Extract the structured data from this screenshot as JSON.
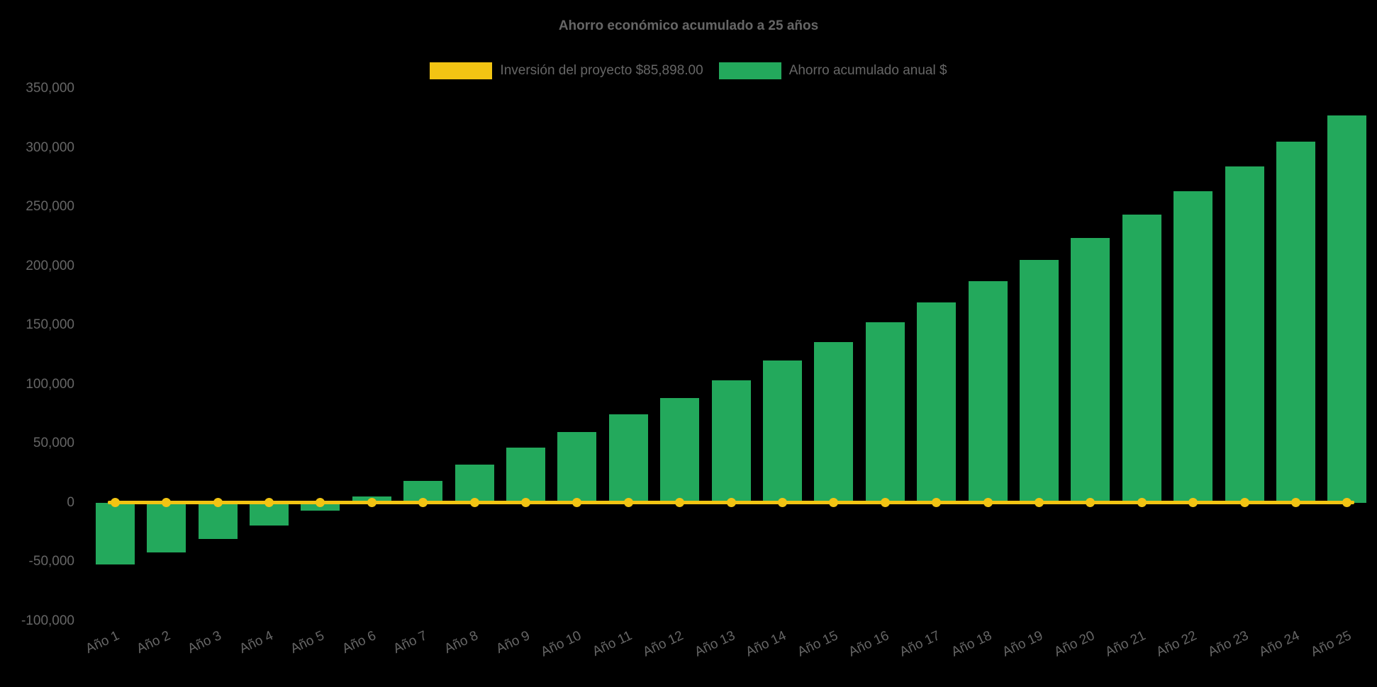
{
  "title": "Ahorro económico acumulado a 25 años",
  "legend": [
    {
      "label": "Inversión del proyecto $85,898.00",
      "color": "#F2C413",
      "type": "line"
    },
    {
      "label": "Ahorro acumulado anual $",
      "color": "#23A95C",
      "type": "bar"
    }
  ],
  "colors": {
    "background": "#000000",
    "text": "#666666",
    "bar_green": "#23A95C",
    "line_yellow": "#F2C413"
  },
  "chart_data": {
    "type": "bar",
    "title": "Ahorro económico acumulado a 25 años",
    "categories": [
      "Año 1",
      "Año 2",
      "Año 3",
      "Año 4",
      "Año 5",
      "Año 6",
      "Año 7",
      "Año 8",
      "Año 9",
      "Año 10",
      "Año 11",
      "Año 12",
      "Año 13",
      "Año 14",
      "Año 15",
      "Año 16",
      "Año 17",
      "Año 18",
      "Año 19",
      "Año 20",
      "Año 21",
      "Año 22",
      "Año 23",
      "Año 24",
      "Año 25"
    ],
    "series": [
      {
        "name": "Ahorro acumulado anual $",
        "type": "bar",
        "color": "#23A95C",
        "values": [
          -52000,
          -42000,
          -30500,
          -19000,
          -6500,
          5500,
          18500,
          32500,
          46500,
          60000,
          74500,
          88500,
          103500,
          120000,
          136000,
          152500,
          169500,
          187000,
          205000,
          224000,
          243500,
          263500,
          284000,
          305000,
          327000
        ]
      },
      {
        "name": "Inversión del proyecto $85,898.00",
        "type": "line",
        "color": "#F2C413",
        "values": [
          0,
          0,
          0,
          0,
          0,
          0,
          0,
          0,
          0,
          0,
          0,
          0,
          0,
          0,
          0,
          0,
          0,
          0,
          0,
          0,
          0,
          0,
          0,
          0,
          0
        ]
      }
    ],
    "xlabel": "",
    "ylabel": "",
    "ylim": [
      -100000,
      350000
    ],
    "yticks": [
      350000,
      300000,
      250000,
      200000,
      150000,
      100000,
      50000,
      0,
      -50000,
      -100000
    ],
    "ytick_labels": [
      "350,000",
      "300,000",
      "250,000",
      "200,000",
      "150,000",
      "100,000",
      "50,000",
      "0",
      "-50,000",
      "-100,000"
    ],
    "grid": false,
    "legend_position": "top"
  }
}
